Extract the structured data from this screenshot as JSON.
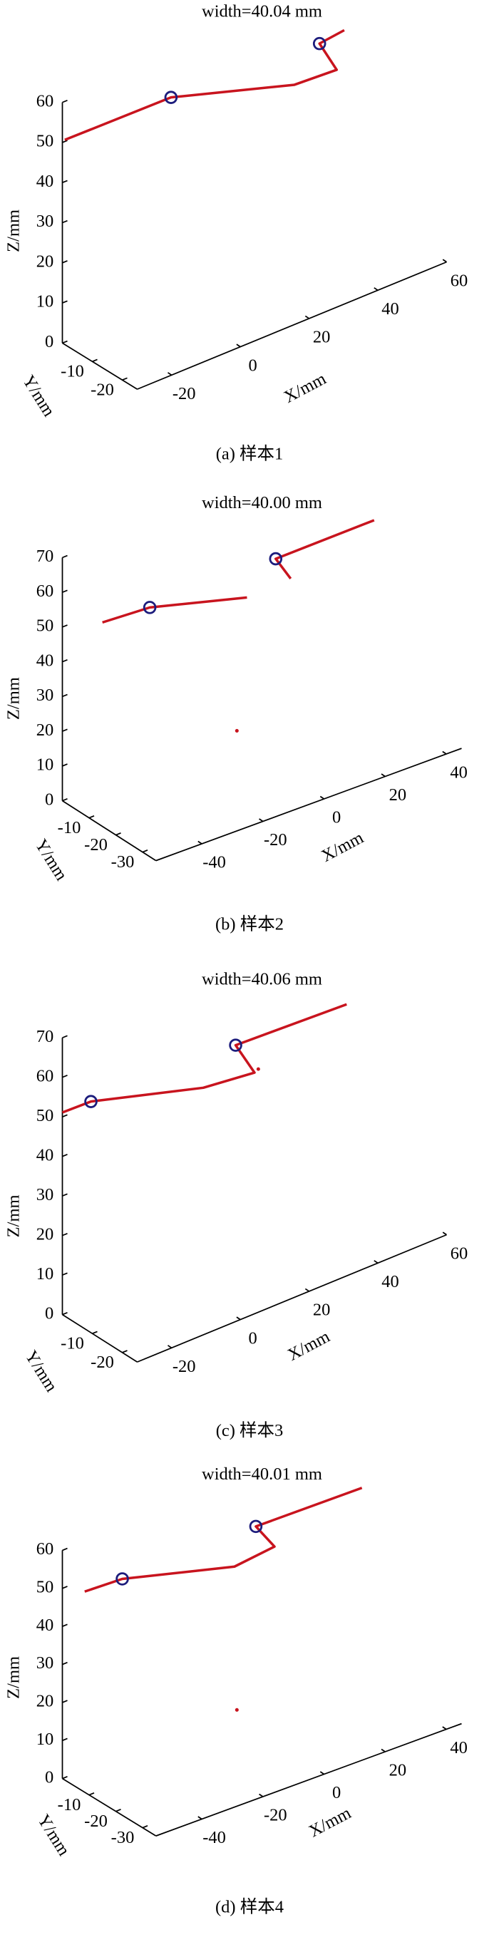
{
  "chart_data": [
    {
      "type": "line3d",
      "title": "width=40.04 mm",
      "caption": "(a) 样本1",
      "xlabel": "X/mm",
      "ylabel": "Y/mm",
      "zlabel": "Z/mm",
      "xlim": [
        -30,
        60
      ],
      "ylim": [
        -25,
        0
      ],
      "zlim": [
        0,
        60
      ],
      "xticks": [
        -20,
        0,
        20,
        40,
        60
      ],
      "yticks": [
        -20,
        -10
      ],
      "zticks": [
        0,
        10,
        20,
        30,
        40,
        50,
        60
      ],
      "series": [
        {
          "style": "line",
          "color": "#c8141e",
          "x": [
            -29.3,
            1.6,
            37.5,
            49.8,
            44.8,
            52.0
          ],
          "y": [
            0,
            0,
            0,
            0,
            0,
            0
          ],
          "z": [
            50.4,
            50.1,
            40.6,
            40.0,
            48.3,
            49.1
          ]
        },
        {
          "style": "circle",
          "color": "#1c1c7c",
          "x": [
            1.6,
            44.8
          ],
          "y": [
            0,
            0
          ],
          "z": [
            50.1,
            48.3
          ]
        }
      ]
    },
    {
      "type": "line3d",
      "title": "width=40.00 mm",
      "caption": "(b) 样本2",
      "xlabel": "X/mm",
      "ylabel": "Y/mm",
      "zlabel": "Z/mm",
      "xlim": [
        -55,
        45
      ],
      "ylim": [
        -35,
        0
      ],
      "zlim": [
        0,
        70
      ],
      "xticks": [
        -40,
        -20,
        0,
        20,
        40
      ],
      "yticks": [
        -30,
        -20,
        -10
      ],
      "zticks": [
        0,
        10,
        20,
        30,
        40,
        50,
        60,
        70
      ],
      "series": [
        {
          "style": "line",
          "color": "#c8141e",
          "x": [
            -41.9,
            -26.4,
            5.4,
            null,
            19.7,
            14.8,
            47.0
          ],
          "y": [
            0,
            0,
            0,
            null,
            0,
            0,
            0
          ],
          "z": [
            47.1,
            46.4,
            39.0,
            null,
            39.8,
            47.1,
            47.8
          ]
        },
        {
          "style": "circle",
          "color": "#1c1c7c",
          "x": [
            -26.4,
            14.8
          ],
          "y": [
            0,
            0
          ],
          "z": [
            46.4,
            47.1
          ]
        },
        {
          "style": "dot",
          "color": "#c8141e",
          "x": [
            2.1
          ],
          "y": [
            0
          ],
          "z": [
            1.7
          ]
        }
      ]
    },
    {
      "type": "line3d",
      "title": "width=40.06 mm",
      "caption": "(c) 样本3",
      "xlabel": "X/mm",
      "ylabel": "Y/mm",
      "zlabel": "Z/mm",
      "xlim": [
        -30,
        60
      ],
      "ylim": [
        -25,
        0
      ],
      "zlim": [
        0,
        70
      ],
      "xticks": [
        -20,
        0,
        20,
        40,
        60
      ],
      "yticks": [
        -20,
        -10
      ],
      "zticks": [
        0,
        10,
        20,
        30,
        40,
        50,
        60,
        70
      ],
      "series": [
        {
          "style": "line",
          "color": "#c8141e",
          "x": [
            -30.0,
            -21.7,
            11.0,
            25.9,
            20.4,
            52.7
          ],
          "y": [
            0,
            0,
            0,
            0,
            0,
            0
          ],
          "z": [
            51.1,
            50.9,
            42.7,
            41.2,
            50.1,
            48.9
          ]
        },
        {
          "style": "circle",
          "color": "#1c1c7c",
          "x": [
            -21.7,
            20.4
          ],
          "y": [
            0,
            0
          ],
          "z": [
            50.9,
            50.1
          ]
        },
        {
          "style": "dot",
          "color": "#c8141e",
          "x": [
            27.0
          ],
          "y": [
            0
          ],
          "z": [
            41.7
          ]
        }
      ]
    },
    {
      "type": "line3d",
      "title": "width=40.01 mm",
      "caption": "(d) 样本4",
      "xlabel": "X/mm",
      "ylabel": "Y/mm",
      "zlabel": "Z/mm",
      "xlim": [
        -55,
        45
      ],
      "ylim": [
        -35,
        0
      ],
      "zlim": [
        0,
        60
      ],
      "xticks": [
        -40,
        -20,
        0,
        20,
        40
      ],
      "yticks": [
        -30,
        -20,
        -10
      ],
      "zticks": [
        0,
        10,
        20,
        30,
        40,
        50,
        60
      ],
      "series": [
        {
          "style": "line",
          "color": "#c8141e",
          "x": [
            -47.7,
            -35.4,
            1.3,
            14.4,
            8.3,
            43.0
          ],
          "y": [
            0,
            0,
            0,
            0,
            0,
            0
          ],
          "z": [
            47.0,
            46.7,
            39.1,
            40.5,
            47.6,
            47.5
          ]
        },
        {
          "style": "circle",
          "color": "#1c1c7c",
          "x": [
            -35.4,
            8.3
          ],
          "y": [
            0,
            0
          ],
          "z": [
            46.7,
            47.6
          ]
        },
        {
          "style": "dot",
          "color": "#c8141e",
          "x": [
            2.1
          ],
          "y": [
            0
          ],
          "z": [
            1.2
          ]
        }
      ]
    }
  ]
}
